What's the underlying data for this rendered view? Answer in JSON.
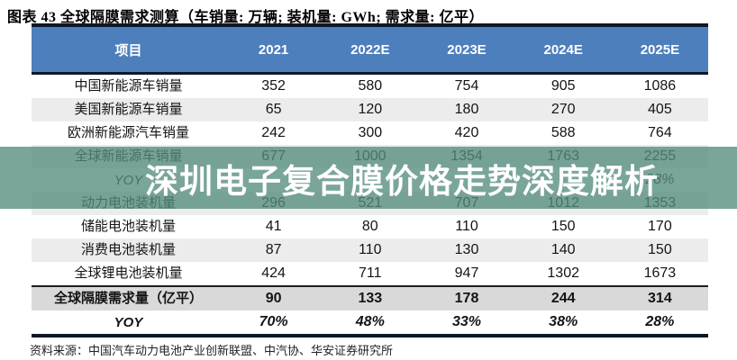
{
  "title": "图表 43 全球隔膜需求测算（车销量: 万辆; 装机量: GWh; 需求量: 亿平）",
  "table": {
    "columns": [
      "项目",
      "2021",
      "2022E",
      "2023E",
      "2024E",
      "2025E"
    ],
    "rows": [
      {
        "label": "中国新能源车销量",
        "values": [
          "352",
          "580",
          "754",
          "905",
          "1086"
        ]
      },
      {
        "label": "美国新能源车销量",
        "values": [
          "65",
          "120",
          "180",
          "270",
          "405"
        ]
      },
      {
        "label": "欧洲新能源汽车销量",
        "values": [
          "242",
          "300",
          "420",
          "588",
          "764"
        ]
      },
      {
        "label": "全球新能源车销量",
        "values": [
          "677",
          "1000",
          "1354",
          "1763",
          "2255"
        ]
      },
      {
        "label": "YOY",
        "values": [
          "",
          "",
          "",
          "",
          "28%"
        ]
      },
      {
        "label": "动力电池装机量",
        "values": [
          "296",
          "521",
          "707",
          "1012",
          "1353"
        ]
      },
      {
        "label": "储能电池装机量",
        "values": [
          "41",
          "80",
          "110",
          "150",
          "170"
        ]
      },
      {
        "label": "消费电池装机量",
        "values": [
          "87",
          "110",
          "130",
          "140",
          "150"
        ]
      },
      {
        "label": "全球锂电池装机量",
        "values": [
          "424",
          "711",
          "947",
          "1302",
          "1673"
        ]
      },
      {
        "label": "全球隔膜需求量（亿平）",
        "values": [
          "90",
          "133",
          "178",
          "244",
          "314"
        ]
      },
      {
        "label": "YOY",
        "values": [
          "70%",
          "48%",
          "33%",
          "38%",
          "28%"
        ]
      }
    ]
  },
  "watermark": {
    "text": "深圳电子复合膜价格走势深度解析"
  },
  "source": "资料来源：中国汽车动力电池产业创新联盟、中汽协、华安证券研究所",
  "colors": {
    "header_bg": "#4e7fbd",
    "border_dark": "#0f1828",
    "row_alt_bg": "#ececec",
    "total_row_bg": "#d9d9d9",
    "watermark_overlay": "#548c7d",
    "watermark_text": "#ffffff"
  }
}
